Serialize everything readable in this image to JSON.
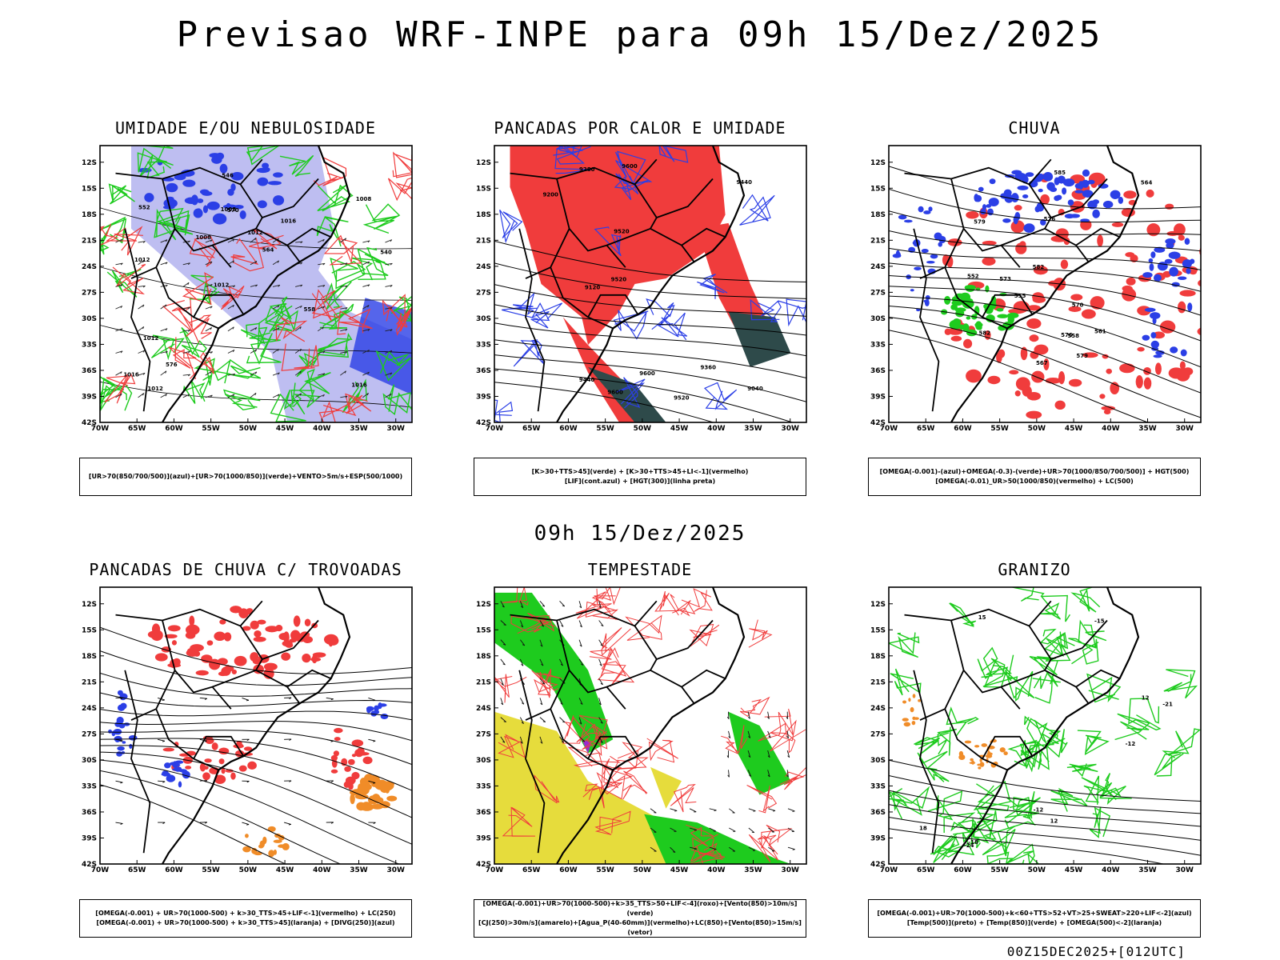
{
  "header": {
    "title": "Previsao WRF-INPE  para 09h 15/Dez/2025"
  },
  "subtitle": "09h 15/Dez/2025",
  "footer": "00Z15DEC2025+[012UTC]",
  "axes": {
    "lat_labels": [
      "12S",
      "15S",
      "18S",
      "21S",
      "24S",
      "27S",
      "30S",
      "33S",
      "36S",
      "39S",
      "42S"
    ],
    "lon_labels": [
      "70W",
      "65W",
      "60W",
      "55W",
      "50W",
      "45W",
      "40W",
      "35W",
      "30W"
    ]
  },
  "colors": {
    "blue": "#2b3fe6",
    "light_blue": "#b7b7f0",
    "green": "#1ecb1e",
    "red": "#f03c3c",
    "orange": "#f08c28",
    "yellow": "#e6dc3c",
    "dark_teal": "#2e4a4a",
    "purple": "#9a2bd0"
  },
  "panels": [
    {
      "title": "UMIDADE E/OU NEBULOSIDADE",
      "legend": [
        "[UR>70(850/700/500)](azul)+[UR>70(1000/850)](verde)+VENTO>5m/s+ESP(500/1000)"
      ],
      "contour_labels": [
        "1016",
        "1012",
        "1008",
        "1012",
        "1016",
        "1012",
        "1008",
        "1012",
        "1012",
        "1008",
        "1016",
        "576",
        "570",
        "564",
        "558",
        "552",
        "546",
        "540"
      ]
    },
    {
      "title": "PANCADAS POR CALOR E UMIDADE",
      "legend": [
        "[K>30+TTS>45](verde) + [K>30+TTS>45+LI<-1](vermelho)",
        "[LIF](cont.azul) + [HGT(300)](linha preta)"
      ],
      "contour_labels": [
        "9600",
        "9520",
        "9440",
        "9360",
        "9280",
        "9200",
        "9120",
        "9040",
        "9600",
        "9520",
        "9440",
        "9600",
        "9520"
      ]
    },
    {
      "title": "CHUVA",
      "legend": [
        "[OMEGA(-0.001)-(azul)+OMEGA(-0.3)-(verde)+UR>70(1000/850/700/500)] + HGT(500)",
        "[OMEGA(-0.01)_UR>50(1000/850)(vermelho) + LC(500)"
      ],
      "contour_labels": [
        "585",
        "582",
        "579",
        "576",
        "573",
        "570",
        "567",
        "564",
        "561",
        "558",
        "555",
        "552",
        "582",
        "579",
        "576"
      ]
    },
    {
      "title": "PANCADAS DE CHUVA C/ TROVOADAS",
      "legend": [
        "[OMEGA(-0.001) + UR>70(1000-500) + k>30_TTS>45+LIF<-1](vermelho) + LC(250)",
        "[OMEGA(-0.001) + UR>70(1000-500) + k>30_TTS>45](laranja) + [DIVG(250)](azul)"
      ],
      "contour_labels": []
    },
    {
      "title": "TEMPESTADE",
      "legend": [
        "[OMEGA(-0.001)+UR>70(1000-500)+k>35_TTS>50+LIF<-4](roxo)+[Vento(850)>10m/s](verde)",
        "[CJ(250)>30m/s](amarelo)+[Agua_P(40-60mm)](vermelho)+LC(850)+[Vento(850)>15m/s](vetor)"
      ],
      "contour_labels": []
    },
    {
      "title": "GRANIZO",
      "legend": [
        "[OMEGA(-0.001)+UR>70(1000-500)+k<60+TTS>52+VT>25+SWEAT>220+LIF<-2](azul)",
        "[Temp(500)](preto) + [Temp(850)](verde) + [OMEGA(500)<-2](laranja)"
      ],
      "contour_labels": [
        "-12",
        "-15",
        "-18",
        "-21",
        "-24",
        "-12",
        "12",
        "15",
        "18",
        "12"
      ]
    }
  ]
}
